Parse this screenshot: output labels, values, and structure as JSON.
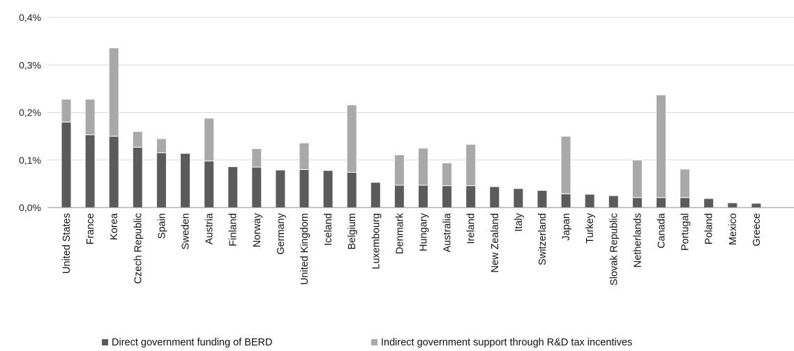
{
  "chart_data": {
    "type": "bar",
    "stacked": true,
    "title": "",
    "xlabel": "",
    "ylabel": "",
    "ylim": [
      0,
      0.4
    ],
    "y_ticks": [
      "0,0%",
      "0,1%",
      "0,2%",
      "0,3%",
      "0,4%"
    ],
    "grid": true,
    "legend_position": "bottom",
    "categories": [
      "United States",
      "France",
      "Korea",
      "Czech Republic",
      "Spain",
      "Sweden",
      "Austria",
      "Finland",
      "Norway",
      "Germany",
      "United Kingdom",
      "Iceland",
      "Belgium",
      "Luxembourg",
      "Denmark",
      "Hungary",
      "Australia",
      "Ireland",
      "New Zealand",
      "Italy",
      "Switzerland",
      "Japan",
      "Turkey",
      "Slovak Republic",
      "Netherlands",
      "Canada",
      "Portugal",
      "Poland",
      "Mexico",
      "Greece"
    ],
    "series": [
      {
        "name": "Direct government funding of BERD",
        "color": "#5b5b5b",
        "values": [
          0.18,
          0.153,
          0.15,
          0.127,
          0.115,
          0.114,
          0.098,
          0.086,
          0.085,
          0.079,
          0.08,
          0.078,
          0.074,
          0.053,
          0.047,
          0.047,
          0.046,
          0.046,
          0.044,
          0.04,
          0.036,
          0.029,
          0.028,
          0.025,
          0.021,
          0.021,
          0.021,
          0.019,
          0.01,
          0.009
        ]
      },
      {
        "name": "Indirect government support through R&D tax incentives",
        "color": "#a9a9a9",
        "values": [
          0.048,
          0.075,
          0.186,
          0.033,
          0.03,
          0,
          0.09,
          0,
          0.039,
          0,
          0.056,
          0,
          0.142,
          0,
          0.064,
          0.078,
          0.048,
          0.087,
          0,
          0,
          0,
          0.121,
          0,
          0,
          0.079,
          0.216,
          0.06,
          0,
          0,
          0
        ]
      }
    ]
  }
}
